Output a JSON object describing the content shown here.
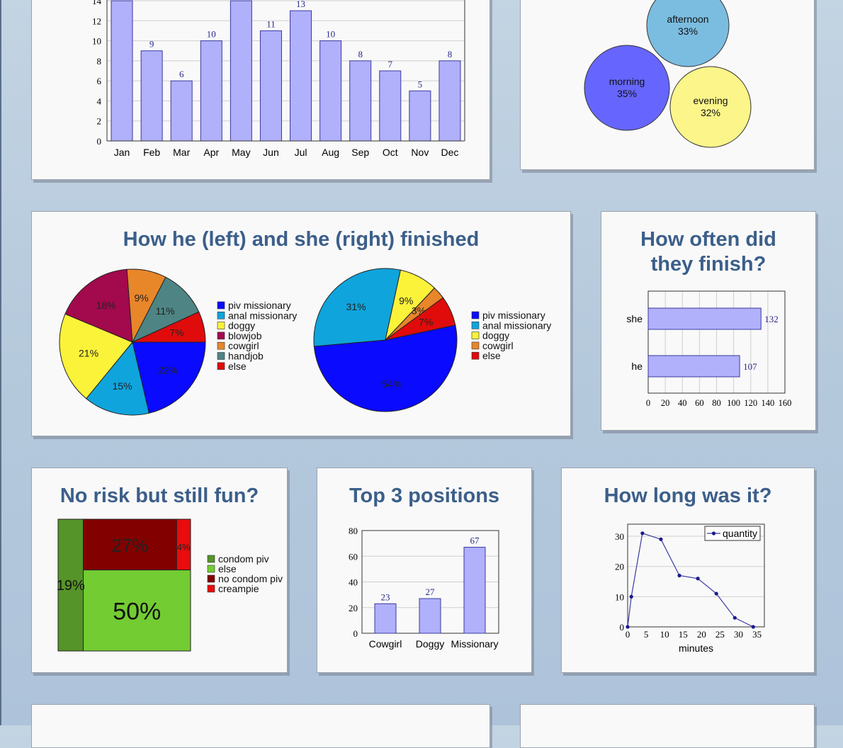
{
  "cards": {
    "monthly": {
      "title": ""
    },
    "daytime": {
      "title": ""
    },
    "finished": {
      "title": "How he (left) and she (right) finished"
    },
    "often": {
      "title_line1": "How often did",
      "title_line2": "they finish?"
    },
    "norisk": {
      "title": "No risk but still fun?"
    },
    "top3": {
      "title": "Top 3 positions"
    },
    "howlong": {
      "title": "How long was it?"
    }
  },
  "colors": {
    "bar_fill": "#b0b0fb",
    "bar_stroke": "#3a3aa0",
    "title": "#3c5f8a",
    "card_bg": "#f9f9f9",
    "page_bg": "#b5c9dc"
  },
  "chart_data": [
    {
      "id": "monthly",
      "type": "bar",
      "title": "",
      "categories": [
        "Jan",
        "Feb",
        "Mar",
        "Apr",
        "May",
        "Jun",
        "Jul",
        "Aug",
        "Sep",
        "Oct",
        "Nov",
        "Dec"
      ],
      "values": [
        14,
        9,
        6,
        10,
        14,
        11,
        13,
        10,
        8,
        7,
        5,
        8
      ],
      "labels": [
        "",
        "9",
        "6",
        "10",
        "",
        "11",
        "13",
        "10",
        "8",
        "7",
        "5",
        "8"
      ],
      "yticks": [
        0,
        2,
        4,
        6,
        8,
        10,
        12,
        14
      ],
      "ylim": [
        0,
        14
      ],
      "grid": true
    },
    {
      "id": "daytime",
      "type": "bubble",
      "title": "",
      "items": [
        {
          "label": "afternoon",
          "value": "33%",
          "color": "#7bbde0"
        },
        {
          "label": "morning",
          "value": "35%",
          "color": "#6666ff"
        },
        {
          "label": "evening",
          "value": "32%",
          "color": "#fbf58a"
        }
      ]
    },
    {
      "id": "he_finished",
      "type": "pie",
      "title": "How he (left) and she (right) finished",
      "slices": [
        {
          "label": "piv missionary",
          "value": 22,
          "text": "22%",
          "color": "#0a0aff"
        },
        {
          "label": "anal missionary",
          "value": 15,
          "text": "15%",
          "color": "#10a4dc"
        },
        {
          "label": "doggy",
          "value": 21,
          "text": "21%",
          "color": "#fbf23a"
        },
        {
          "label": "blowjob",
          "value": 18,
          "text": "18%",
          "color": "#a3094d"
        },
        {
          "label": "cowgirl",
          "value": 9,
          "text": "9%",
          "color": "#e8862a"
        },
        {
          "label": "handjob",
          "value": 11,
          "text": "11%",
          "color": "#4e8484"
        },
        {
          "label": "else",
          "value": 7,
          "text": "7%",
          "color": "#e00c0c"
        }
      ]
    },
    {
      "id": "she_finished",
      "type": "pie",
      "slices": [
        {
          "label": "piv missionary",
          "value": 54,
          "text": "54%",
          "color": "#0a0aff"
        },
        {
          "label": "anal missionary",
          "value": 31,
          "text": "31%",
          "color": "#10a4dc"
        },
        {
          "label": "doggy",
          "value": 9,
          "text": "9%",
          "color": "#fbf23a"
        },
        {
          "label": "cowgirl",
          "value": 3,
          "text": "3%",
          "color": "#e8862a"
        },
        {
          "label": "else",
          "value": 7,
          "text": "7%",
          "color": "#e00c0c"
        }
      ]
    },
    {
      "id": "often",
      "type": "bar",
      "orientation": "horizontal",
      "title": "How often did they finish?",
      "categories": [
        "she",
        "he"
      ],
      "values": [
        132,
        107
      ],
      "xticks": [
        0,
        20,
        40,
        60,
        80,
        100,
        120,
        140,
        160
      ],
      "xlim": [
        0,
        160
      ],
      "grid": true
    },
    {
      "id": "norisk",
      "type": "treemap",
      "title": "No risk but still fun?",
      "items": [
        {
          "label": "condom piv",
          "value": 19,
          "text": "19%",
          "color": "#559428"
        },
        {
          "label": "else",
          "value": 50,
          "text": "50%",
          "color": "#73cc32"
        },
        {
          "label": "no condom piv",
          "value": 27,
          "text": "27%",
          "color": "#820000"
        },
        {
          "label": "creampie",
          "value": 4,
          "text": "4%",
          "color": "#e80c0c"
        }
      ]
    },
    {
      "id": "top3",
      "type": "bar",
      "title": "Top 3 positions",
      "categories": [
        "Cowgirl",
        "Doggy",
        "Missionary"
      ],
      "values": [
        23,
        27,
        67
      ],
      "yticks": [
        0,
        20,
        40,
        60,
        80
      ],
      "ylim": [
        0,
        80
      ],
      "grid": true
    },
    {
      "id": "howlong",
      "type": "line",
      "title": "How long was it?",
      "xlabel": "minutes",
      "ylabel": "",
      "legend": "quantity",
      "legend_position": "top-right",
      "x": [
        0,
        1,
        4,
        9,
        14,
        19,
        24,
        29,
        34
      ],
      "values": [
        0,
        10,
        31,
        29,
        17,
        16,
        11,
        3,
        0
      ],
      "xticks": [
        0,
        5,
        10,
        15,
        20,
        25,
        30,
        35
      ],
      "yticks": [
        0,
        10,
        20,
        30
      ],
      "xlim": [
        0,
        37
      ],
      "ylim": [
        0,
        34
      ],
      "grid": true
    }
  ]
}
